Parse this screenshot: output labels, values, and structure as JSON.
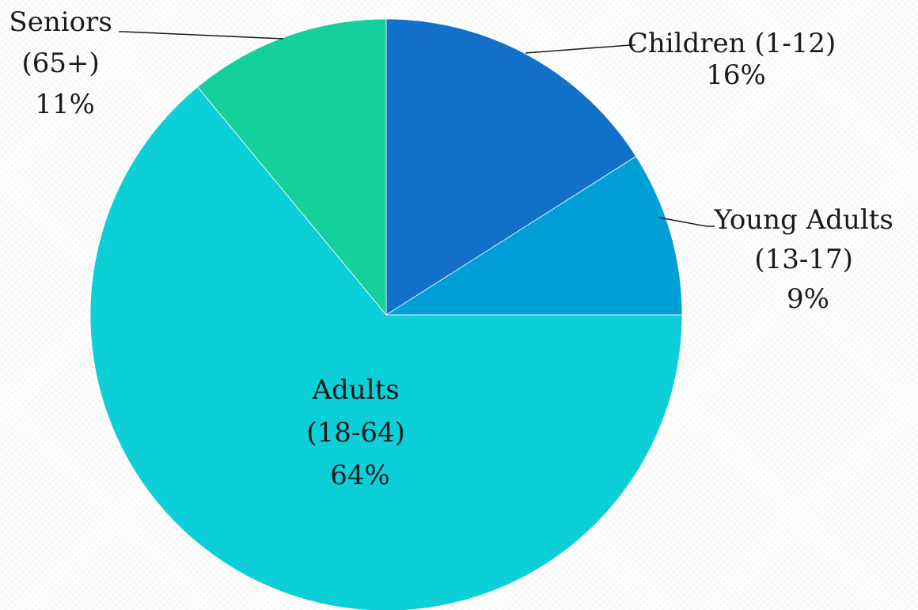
{
  "chart_data": {
    "type": "pie",
    "slices": [
      {
        "category": "Children (1-12)",
        "line1": "Children (1-12)",
        "line2": "16%",
        "line3": "",
        "value": 16,
        "color": "#1270c9"
      },
      {
        "category": "Young Adults (13-17)",
        "line1": "Young Adults",
        "line2": "(13-17)",
        "line3": "9%",
        "value": 9,
        "color": "#00a0d6"
      },
      {
        "category": "Adults (18-64)",
        "line1": "Adults",
        "line2": "(18-64)",
        "line3": "64%",
        "value": 64,
        "color": "#0dcfd8"
      },
      {
        "category": "Seniors (65+)",
        "line1": "Seniors",
        "line2": "(65+)",
        "line3": "11%",
        "value": 11,
        "color": "#14d09a"
      }
    ]
  }
}
